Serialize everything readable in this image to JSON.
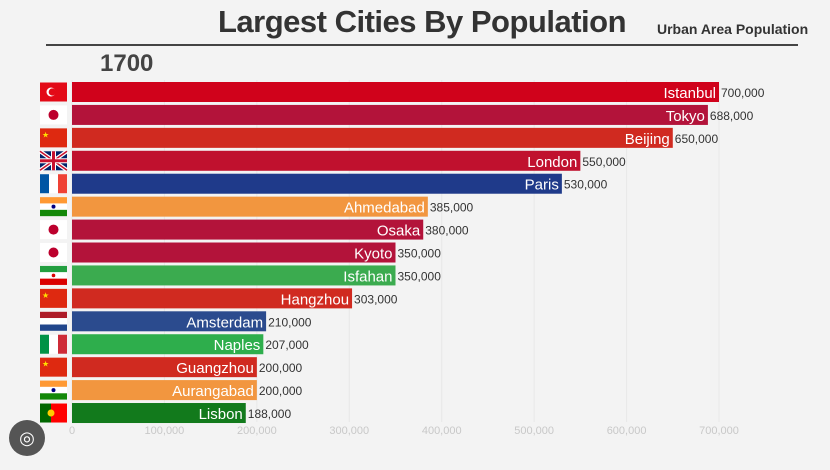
{
  "chart_data": {
    "type": "bar",
    "orientation": "horizontal",
    "title": "Largest Cities By Population",
    "subtitle": "Urban Area Population",
    "year_label": "1700",
    "xlim": [
      0,
      700000
    ],
    "x_ticks": [
      0,
      100000,
      200000,
      300000,
      400000,
      500000,
      600000,
      700000
    ],
    "x_tick_labels": [
      "0",
      "100,000",
      "200,000",
      "300,000",
      "400,000",
      "500,000",
      "600,000",
      "700,000"
    ],
    "grid": true,
    "categories": [
      "Istanbul",
      "Tokyo",
      "Beijing",
      "London",
      "Paris",
      "Ahmedabad",
      "Osaka",
      "Kyoto",
      "Isfahan",
      "Hangzhou",
      "Amsterdam",
      "Naples",
      "Guangzhou",
      "Aurangabad",
      "Lisbon"
    ],
    "values": [
      700000,
      688000,
      650000,
      550000,
      530000,
      385000,
      380000,
      350000,
      350000,
      303000,
      210000,
      207000,
      200000,
      200000,
      188000
    ],
    "value_labels": [
      "700,000",
      "688,000",
      "650,000",
      "550,000",
      "530,000",
      "385,000",
      "380,000",
      "350,000",
      "350,000",
      "303,000",
      "210,000",
      "207,000",
      "200,000",
      "200,000",
      "188,000"
    ],
    "countries": [
      "turkey",
      "japan",
      "china",
      "uk",
      "france",
      "india",
      "japan",
      "japan",
      "iran",
      "china",
      "netherlands",
      "italy",
      "china",
      "india",
      "portugal"
    ],
    "colors": [
      "#d0021b",
      "#b3133a",
      "#d02a20",
      "#c0112e",
      "#1f3a8a",
      "#f2963f",
      "#b3133a",
      "#b3133a",
      "#3bab4f",
      "#d02a20",
      "#2b4b8e",
      "#2eae4c",
      "#d02a20",
      "#f2963f",
      "#127a1c"
    ]
  }
}
